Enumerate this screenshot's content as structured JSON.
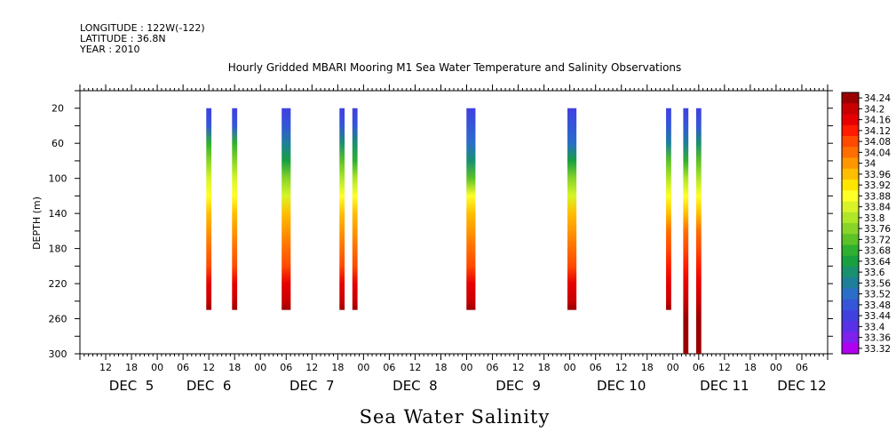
{
  "header": {
    "longitude": "LONGITUDE : 122W(-122)",
    "latitude": "LATITUDE : 36.8N",
    "year": "YEAR : 2010"
  },
  "chart_data": {
    "type": "heatmap",
    "title": "Hourly Gridded MBARI Mooring M1 Sea Water Temperature and Salinity Observations",
    "xlabel": "Sea Water Salinity",
    "ylabel": "DEPTH (m)",
    "x_unit": "hours since DEC 5 00:00",
    "xlim": [
      -18,
      156
    ],
    "ylim": [
      300,
      0
    ],
    "y_ticks": [
      20,
      60,
      100,
      140,
      180,
      220,
      260,
      300
    ],
    "x_tick_hours": [
      -12,
      -6,
      0,
      6,
      12,
      18,
      24,
      30,
      36,
      42,
      48,
      54,
      60,
      66,
      72,
      78,
      84,
      90,
      96,
      102,
      108,
      114,
      120,
      126,
      132,
      138,
      144,
      150
    ],
    "day_labels": [
      {
        "label": "DEC  5",
        "hour": -6
      },
      {
        "label": "DEC  6",
        "hour": 12
      },
      {
        "label": "DEC  7",
        "hour": 36
      },
      {
        "label": "DEC  8",
        "hour": 60
      },
      {
        "label": "DEC  9",
        "hour": 84
      },
      {
        "label": "DEC 10",
        "hour": 108
      },
      {
        "label": "DEC 11",
        "hour": 132
      },
      {
        "label": "DEC 12",
        "hour": 150
      }
    ],
    "colorbar": {
      "levels": [
        "34.24",
        "34.2",
        "34.16",
        "34.12",
        "34.08",
        "34.04",
        "34",
        "33.96",
        "33.92",
        "33.88",
        "33.84",
        "33.8",
        "33.76",
        "33.72",
        "33.68",
        "33.64",
        "33.6",
        "33.56",
        "33.52",
        "33.48",
        "33.44",
        "33.4",
        "33.36",
        "33.32"
      ],
      "colors": [
        "#9b0000",
        "#c80000",
        "#e60000",
        "#ff1a00",
        "#ff4a00",
        "#ff6e00",
        "#ff9600",
        "#ffbe00",
        "#ffe600",
        "#ffff28",
        "#d8f428",
        "#b0e628",
        "#88d428",
        "#5cc228",
        "#30b030",
        "#18a040",
        "#1a9070",
        "#1d7f9a",
        "#2a6ec8",
        "#3456d8",
        "#4040e0",
        "#5a30e6",
        "#8020ec",
        "#b000f0"
      ],
      "range": [
        33.32,
        34.24
      ]
    },
    "bars": [
      {
        "x": 12,
        "width": 1.2,
        "depth": [
          20,
          250
        ],
        "series": [
          [
            20,
            33.46
          ],
          [
            40,
            33.5
          ],
          [
            60,
            33.7
          ],
          [
            80,
            33.76
          ],
          [
            100,
            33.82
          ],
          [
            120,
            33.88
          ],
          [
            140,
            33.94
          ],
          [
            160,
            33.98
          ],
          [
            180,
            34.02
          ],
          [
            200,
            34.08
          ],
          [
            220,
            34.14
          ],
          [
            240,
            34.2
          ],
          [
            250,
            34.22
          ]
        ]
      },
      {
        "x": 18,
        "width": 1.2,
        "depth": [
          20,
          250
        ],
        "series": [
          [
            20,
            33.46
          ],
          [
            40,
            33.5
          ],
          [
            60,
            33.7
          ],
          [
            80,
            33.76
          ],
          [
            100,
            33.82
          ],
          [
            120,
            33.88
          ],
          [
            140,
            33.94
          ],
          [
            160,
            33.98
          ],
          [
            180,
            34.02
          ],
          [
            200,
            34.08
          ],
          [
            220,
            34.14
          ],
          [
            240,
            34.2
          ],
          [
            250,
            34.22
          ]
        ]
      },
      {
        "x": 30,
        "width": 2.1,
        "depth": [
          20,
          250
        ],
        "series": [
          [
            20,
            33.44
          ],
          [
            40,
            33.48
          ],
          [
            60,
            33.56
          ],
          [
            80,
            33.66
          ],
          [
            100,
            33.76
          ],
          [
            120,
            33.84
          ],
          [
            140,
            33.94
          ],
          [
            160,
            34.0
          ],
          [
            180,
            34.04
          ],
          [
            200,
            34.08
          ],
          [
            220,
            34.14
          ],
          [
            240,
            34.2
          ],
          [
            250,
            34.22
          ]
        ]
      },
      {
        "x": 43,
        "width": 1.2,
        "depth": [
          20,
          250
        ],
        "series": [
          [
            20,
            33.46
          ],
          [
            40,
            33.5
          ],
          [
            60,
            33.62
          ],
          [
            80,
            33.74
          ],
          [
            100,
            33.8
          ],
          [
            120,
            33.88
          ],
          [
            140,
            33.94
          ],
          [
            160,
            33.98
          ],
          [
            180,
            34.02
          ],
          [
            200,
            34.08
          ],
          [
            220,
            34.14
          ],
          [
            240,
            34.2
          ],
          [
            250,
            34.22
          ]
        ]
      },
      {
        "x": 46,
        "width": 1.2,
        "depth": [
          20,
          250
        ],
        "series": [
          [
            20,
            33.46
          ],
          [
            40,
            33.5
          ],
          [
            60,
            33.6
          ],
          [
            80,
            33.7
          ],
          [
            100,
            33.78
          ],
          [
            120,
            33.86
          ],
          [
            140,
            33.94
          ],
          [
            160,
            34.0
          ],
          [
            180,
            34.04
          ],
          [
            200,
            34.08
          ],
          [
            220,
            34.14
          ],
          [
            240,
            34.2
          ],
          [
            250,
            34.22
          ]
        ]
      },
      {
        "x": 73,
        "width": 2.1,
        "depth": [
          20,
          250
        ],
        "series": [
          [
            20,
            33.44
          ],
          [
            40,
            33.48
          ],
          [
            60,
            33.54
          ],
          [
            80,
            33.62
          ],
          [
            100,
            33.74
          ],
          [
            120,
            33.86
          ],
          [
            140,
            33.94
          ],
          [
            160,
            34.0
          ],
          [
            180,
            34.04
          ],
          [
            200,
            34.08
          ],
          [
            220,
            34.14
          ],
          [
            240,
            34.2
          ],
          [
            250,
            34.22
          ]
        ]
      },
      {
        "x": 96.5,
        "width": 2.1,
        "depth": [
          20,
          250
        ],
        "series": [
          [
            20,
            33.44
          ],
          [
            40,
            33.48
          ],
          [
            60,
            33.54
          ],
          [
            80,
            33.66
          ],
          [
            100,
            33.76
          ],
          [
            120,
            33.84
          ],
          [
            140,
            33.94
          ],
          [
            160,
            34.0
          ],
          [
            180,
            34.04
          ],
          [
            200,
            34.08
          ],
          [
            220,
            34.14
          ],
          [
            240,
            34.2
          ],
          [
            250,
            34.22
          ]
        ]
      },
      {
        "x": 119,
        "width": 1.2,
        "depth": [
          20,
          250
        ],
        "series": [
          [
            20,
            33.46
          ],
          [
            40,
            33.5
          ],
          [
            60,
            33.58
          ],
          [
            80,
            33.72
          ],
          [
            100,
            33.8
          ],
          [
            120,
            33.88
          ],
          [
            140,
            33.96
          ],
          [
            160,
            34.02
          ],
          [
            180,
            34.06
          ],
          [
            200,
            34.1
          ],
          [
            220,
            34.14
          ],
          [
            240,
            34.2
          ],
          [
            250,
            34.22
          ]
        ]
      },
      {
        "x": 123,
        "width": 1.2,
        "depth": [
          20,
          300
        ],
        "series": [
          [
            20,
            33.46
          ],
          [
            40,
            33.5
          ],
          [
            60,
            33.56
          ],
          [
            80,
            33.68
          ],
          [
            100,
            33.78
          ],
          [
            120,
            33.86
          ],
          [
            140,
            33.96
          ],
          [
            160,
            34.02
          ],
          [
            180,
            34.06
          ],
          [
            200,
            34.1
          ],
          [
            220,
            34.14
          ],
          [
            240,
            34.18
          ],
          [
            260,
            34.22
          ],
          [
            280,
            34.24
          ],
          [
            300,
            34.24
          ]
        ]
      },
      {
        "x": 126,
        "width": 1.2,
        "depth": [
          20,
          300
        ],
        "series": [
          [
            20,
            33.46
          ],
          [
            40,
            33.5
          ],
          [
            60,
            33.6
          ],
          [
            80,
            33.72
          ],
          [
            100,
            33.8
          ],
          [
            120,
            33.88
          ],
          [
            140,
            33.96
          ],
          [
            160,
            34.02
          ],
          [
            180,
            34.06
          ],
          [
            200,
            34.1
          ],
          [
            220,
            34.14
          ],
          [
            240,
            34.2
          ],
          [
            260,
            34.22
          ],
          [
            280,
            34.24
          ],
          [
            300,
            34.24
          ]
        ]
      }
    ]
  }
}
